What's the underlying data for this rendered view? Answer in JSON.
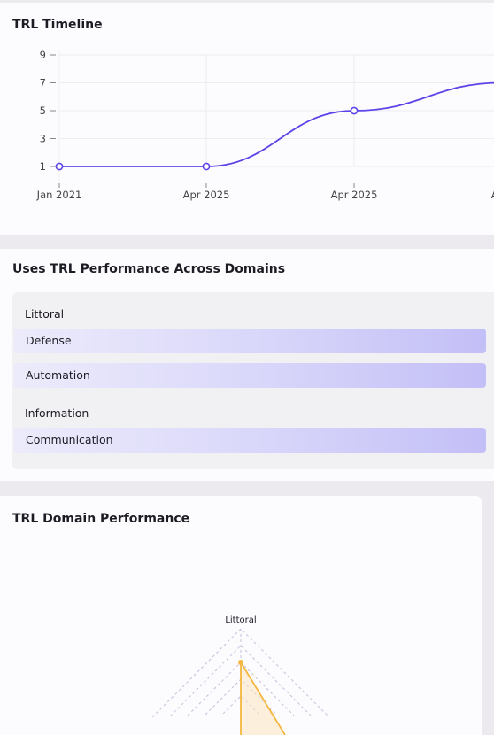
{
  "timeline": {
    "title": "TRL Timeline"
  },
  "chart_data": [
    {
      "type": "line",
      "title": "TRL Timeline",
      "x": [
        "Jan 2021",
        "Apr 2025",
        "Apr 2025",
        "Aug"
      ],
      "y_ticks": [
        1,
        3,
        5,
        7,
        9
      ],
      "ylim": [
        0,
        9.5
      ],
      "series": [
        {
          "values": [
            1,
            1,
            5,
            7
          ],
          "color": "#5b45e8"
        }
      ],
      "grid": true
    },
    {
      "type": "radar",
      "title": "TRL Domain Performance",
      "axes": [
        "Littoral"
      ],
      "series": [
        {
          "values": [
            5
          ],
          "color": "#f5b63f"
        }
      ]
    }
  ],
  "domains": {
    "title": "Uses TRL Performance Across Domains",
    "groups": [
      {
        "label": "Littoral",
        "items": [
          "Defense",
          "Automation"
        ]
      },
      {
        "label": "Information",
        "items": [
          "Communication"
        ]
      }
    ],
    "bar_color": "#c3bff7"
  },
  "radar": {
    "title": "TRL Domain Performance"
  }
}
